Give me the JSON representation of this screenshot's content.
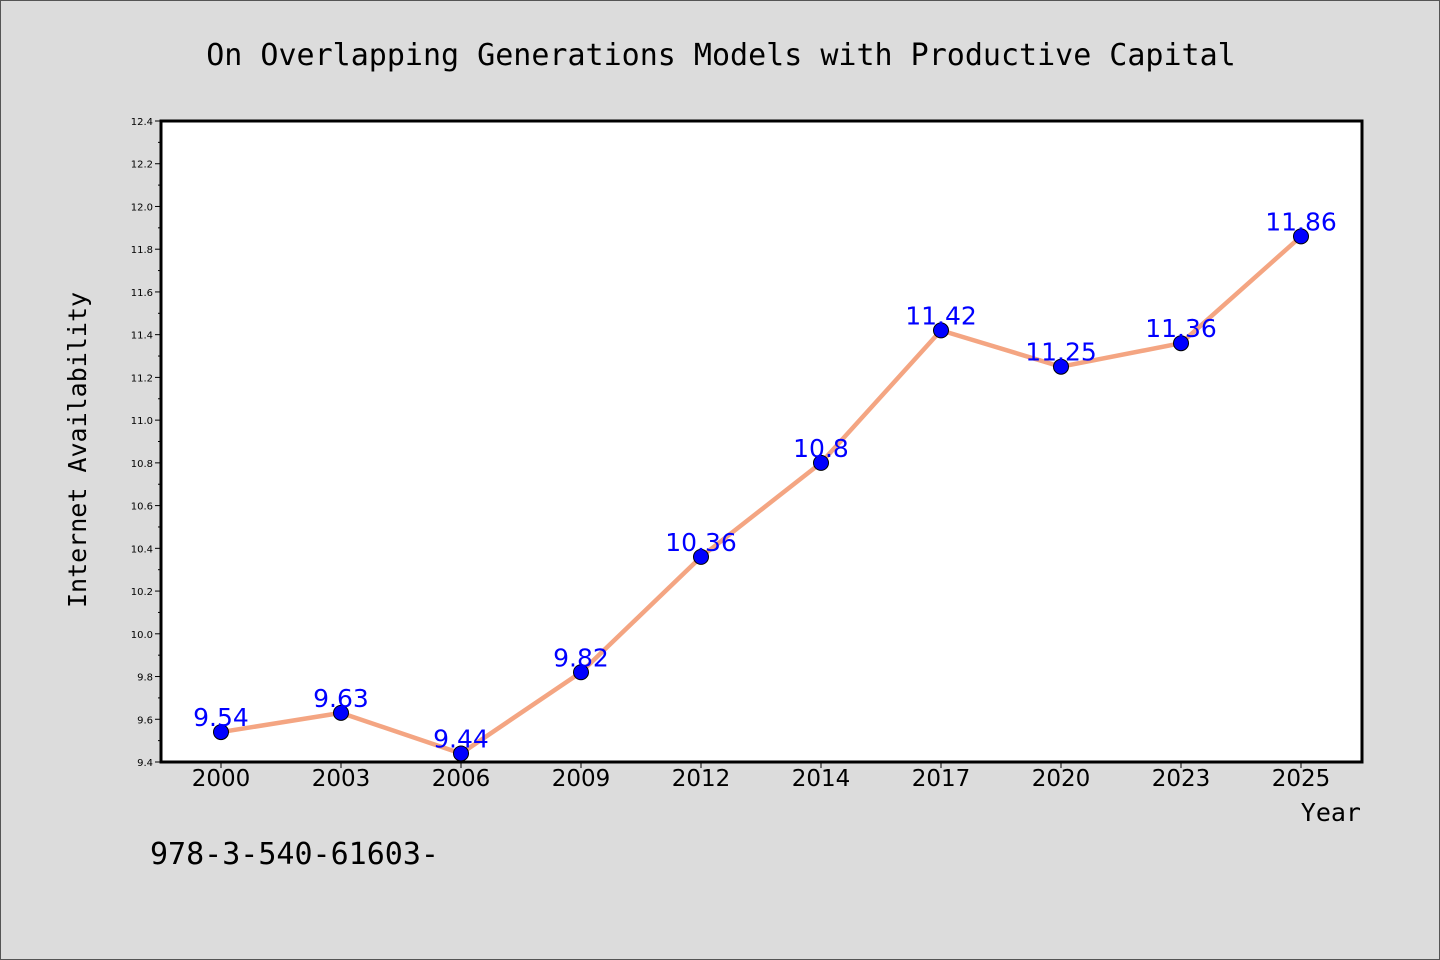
{
  "chart_data": {
    "type": "line",
    "title": "On Overlapping Generations Models with Productive Capital",
    "xlabel": "Year",
    "ylabel": "Internet Availability",
    "categories": [
      "2000",
      "2003",
      "2006",
      "2009",
      "2012",
      "2014",
      "2017",
      "2020",
      "2023",
      "2025"
    ],
    "values": [
      9.54,
      9.63,
      9.44,
      9.82,
      10.36,
      10.8,
      11.42,
      11.25,
      11.36,
      11.86
    ],
    "data_labels": [
      "9.54",
      "9.63",
      "9.44",
      "9.82",
      "10.36",
      "10.8",
      "11.42",
      "11.25",
      "11.36",
      "11.86"
    ],
    "ylim": [
      9.4,
      12.4
    ],
    "yticks": [
      "9.4",
      "9.6",
      "9.8",
      "10.0",
      "10.2",
      "10.4",
      "10.6",
      "10.8",
      "11.0",
      "11.2",
      "11.4",
      "11.6",
      "11.8",
      "12.0",
      "12.2",
      "12.4"
    ],
    "grid": false,
    "line_color": "#f4a582",
    "marker_color": "#0000ff",
    "label_color": "#0000ff",
    "footer_text": "978-3-540-61603-"
  }
}
